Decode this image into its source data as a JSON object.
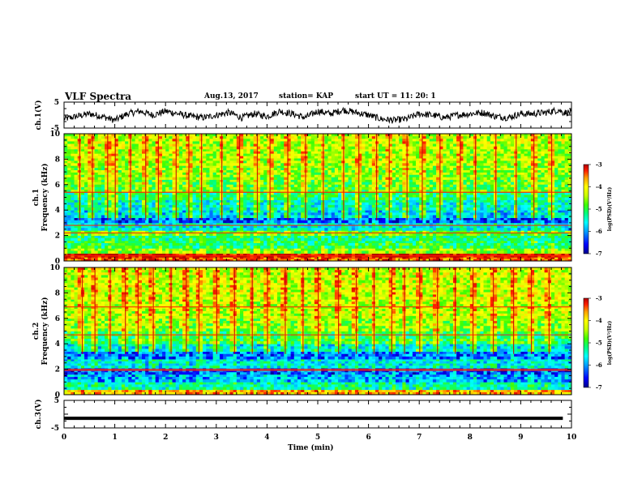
{
  "header": {
    "title": "VLF Spectra",
    "date": "Aug.13, 2017",
    "station": "station= KAP",
    "start": "start UT =  11: 20: 1"
  },
  "colors": {
    "colormap": [
      "#00008b",
      "#0000ff",
      "#00a0ff",
      "#00ffff",
      "#00ff80",
      "#40ff00",
      "#c8ff00",
      "#ffff00",
      "#ffa000",
      "#ff2000",
      "#b40000"
    ],
    "trace": "#000000",
    "background": "#ffffff"
  },
  "chart_data": [
    {
      "type": "line",
      "name": "ch1-waveform",
      "ylabel": "ch.1(V)",
      "ylim": [
        -5,
        5
      ],
      "yticks": [
        "5",
        "-5"
      ],
      "xlim": [
        0,
        10
      ],
      "x": [
        0.0,
        0.25,
        0.5,
        0.75,
        1.0,
        1.25,
        1.5,
        1.75,
        2.0,
        2.25,
        2.5,
        2.75,
        3.0,
        3.25,
        3.5,
        3.75,
        4.0,
        4.25,
        4.5,
        4.75,
        5.0,
        5.25,
        5.5,
        5.75,
        6.0,
        6.25,
        6.5,
        6.75,
        7.0,
        7.25,
        7.5,
        7.75,
        8.0,
        8.25,
        8.5,
        8.75,
        9.0,
        9.25,
        9.5,
        9.75,
        9.83
      ],
      "y": [
        -1.5,
        -0.5,
        0.5,
        -0.5,
        -2.0,
        0.5,
        1.5,
        0.0,
        1.5,
        0.5,
        -0.5,
        -1.0,
        0.0,
        1.0,
        -1.0,
        0.5,
        -0.5,
        1.5,
        0.5,
        -1.0,
        1.5,
        0.5,
        2.0,
        1.0,
        0.0,
        -1.5,
        -2.0,
        -1.5,
        0.5,
        0.0,
        -1.0,
        0.0,
        0.5,
        1.0,
        -0.5,
        -1.0,
        0.5,
        0.5,
        1.0,
        2.0,
        1.0
      ]
    },
    {
      "type": "heatmap",
      "name": "ch1-spectrogram",
      "ylabel": "ch.1\nFrequency (kHz)",
      "ylim": [
        0,
        10
      ],
      "yticks": [
        "0",
        "2",
        "4",
        "6",
        "8",
        "10"
      ],
      "xlim": [
        0,
        10
      ],
      "colorbar": {
        "label": "log(PSD)(V²/Hz)",
        "range": [
          -7,
          -3
        ],
        "ticks": [
          "-3",
          "-4",
          "-5",
          "-6",
          "-7"
        ]
      },
      "rows": [
        {
          "f0": 0.0,
          "f1": 0.3,
          "v": 0.85
        },
        {
          "f0": 0.3,
          "f1": 0.6,
          "v": 0.95
        },
        {
          "f0": 0.6,
          "f1": 1.0,
          "v": 0.55
        },
        {
          "f0": 1.0,
          "f1": 1.6,
          "v": 0.42
        },
        {
          "f0": 1.6,
          "f1": 2.0,
          "v": 0.38
        },
        {
          "f0": 2.0,
          "f1": 2.4,
          "v": 0.5
        },
        {
          "f0": 2.4,
          "f1": 3.0,
          "v": 0.3
        },
        {
          "f0": 3.0,
          "f1": 3.4,
          "v": 0.15
        },
        {
          "f0": 3.4,
          "f1": 4.0,
          "v": 0.28
        },
        {
          "f0": 4.0,
          "f1": 4.8,
          "v": 0.33
        },
        {
          "f0": 4.8,
          "f1": 5.4,
          "v": 0.4
        },
        {
          "f0": 5.4,
          "f1": 6.4,
          "v": 0.5
        },
        {
          "f0": 6.4,
          "f1": 7.5,
          "v": 0.55
        },
        {
          "f0": 7.5,
          "f1": 8.8,
          "v": 0.58
        },
        {
          "f0": 8.8,
          "f1": 10.0,
          "v": 0.6
        }
      ],
      "bright_lines_khz": [
        0.4,
        2.2,
        2.8,
        5.4
      ],
      "columns": [
        0.3,
        0.55,
        0.85,
        1.0,
        1.3,
        1.6,
        1.85,
        2.2,
        2.45,
        2.7,
        3.1,
        3.45,
        3.8,
        4.05,
        4.4,
        4.75,
        5.1,
        5.5,
        5.8,
        6.15,
        6.4,
        6.75,
        7.05,
        7.4,
        7.8,
        8.1,
        8.5,
        8.9,
        9.25,
        9.6
      ]
    },
    {
      "type": "heatmap",
      "name": "ch2-spectrogram",
      "ylabel": "ch.2\nFrequency (kHz)",
      "ylim": [
        0,
        10
      ],
      "yticks": [
        "0",
        "2",
        "4",
        "6",
        "8",
        "10"
      ],
      "xlim": [
        0,
        10
      ],
      "colorbar": {
        "label": "log(PSD)(V²/Hz)",
        "range": [
          -7,
          -3
        ],
        "ticks": [
          "-3",
          "-4",
          "-5",
          "-6",
          "-7"
        ]
      },
      "rows": [
        {
          "f0": 0.0,
          "f1": 0.4,
          "v": 0.75
        },
        {
          "f0": 0.4,
          "f1": 1.0,
          "v": 0.35
        },
        {
          "f0": 1.0,
          "f1": 1.6,
          "v": 0.22
        },
        {
          "f0": 1.6,
          "f1": 2.1,
          "v": 0.15
        },
        {
          "f0": 2.1,
          "f1": 2.8,
          "v": 0.3
        },
        {
          "f0": 2.8,
          "f1": 3.4,
          "v": 0.18
        },
        {
          "f0": 3.4,
          "f1": 4.0,
          "v": 0.3
        },
        {
          "f0": 4.0,
          "f1": 5.0,
          "v": 0.45
        },
        {
          "f0": 5.0,
          "f1": 6.0,
          "v": 0.55
        },
        {
          "f0": 6.0,
          "f1": 7.5,
          "v": 0.6
        },
        {
          "f0": 7.5,
          "f1": 8.8,
          "v": 0.62
        },
        {
          "f0": 8.8,
          "f1": 10.0,
          "v": 0.62
        }
      ],
      "bright_lines_khz": [
        1.9,
        2.0,
        4.7,
        6.9
      ],
      "columns": [
        0.35,
        0.6,
        0.9,
        1.2,
        1.45,
        1.75,
        2.1,
        2.4,
        2.65,
        3.0,
        3.35,
        3.7,
        4.0,
        4.35,
        4.7,
        5.0,
        5.4,
        5.75,
        6.1,
        6.45,
        6.7,
        7.0,
        7.35,
        7.7,
        8.05,
        8.45,
        8.85,
        9.2,
        9.55
      ]
    },
    {
      "type": "line",
      "name": "ch3-waveform",
      "ylabel": "ch.3(V)",
      "ylim": [
        -5,
        5
      ],
      "yticks": [
        "5",
        "-5"
      ],
      "xlim": [
        0,
        10
      ],
      "x": [
        0,
        9.83
      ],
      "y": [
        -1.5,
        -1.5
      ]
    }
  ],
  "xaxis": {
    "label": "Time (min)",
    "ticks": [
      "0",
      "1",
      "2",
      "3",
      "4",
      "5",
      "6",
      "7",
      "8",
      "9",
      "10"
    ]
  }
}
